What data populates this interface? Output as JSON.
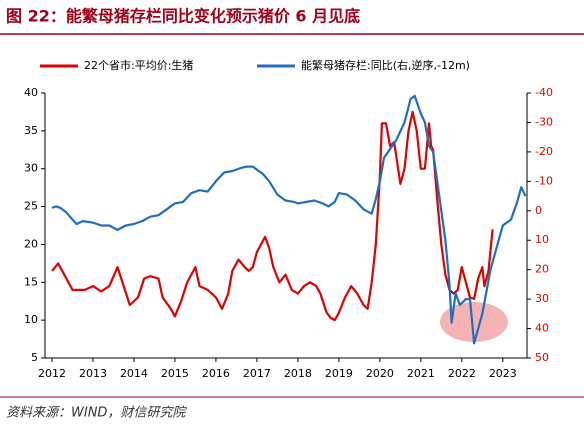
{
  "chart_data": {
    "type": "line",
    "title": "图 22：能繁母猪存栏同比变化预示猪价 6 月见底",
    "source": "资料来源：WIND，财信研究院",
    "xlim": [
      2011.83,
      2023.59
    ],
    "xticks": [
      2012,
      2013,
      2014,
      2015,
      2016,
      2017,
      2018,
      2019,
      2020,
      2021,
      2022,
      2023
    ],
    "ylim": [
      5,
      40
    ],
    "yticks": [
      5,
      10,
      15,
      20,
      25,
      30,
      35,
      40
    ],
    "y2lim": [
      -40,
      50
    ],
    "y2ticks": [
      -40,
      -30,
      -20,
      -10,
      0,
      10,
      20,
      30,
      40,
      50
    ],
    "y2_inverted": true,
    "y2tick_color": "#e00000",
    "legend": "top",
    "series": [
      {
        "name": "22个省市:平均价:生猪",
        "color": "#e00000",
        "x": [
          2012.0,
          2012.15,
          2012.3,
          2012.5,
          2012.8,
          2013.0,
          2013.2,
          2013.4,
          2013.6,
          2013.75,
          2013.9,
          2014.1,
          2014.25,
          2014.4,
          2014.6,
          2014.7,
          2014.9,
          2015.0,
          2015.15,
          2015.3,
          2015.5,
          2015.6,
          2015.8,
          2015.9,
          2016.0,
          2016.15,
          2016.3,
          2016.4,
          2016.55,
          2016.7,
          2016.8,
          2016.9,
          2017.0,
          2017.1,
          2017.2,
          2017.3,
          2017.4,
          2017.55,
          2017.7,
          2017.85,
          2018.0,
          2018.15,
          2018.3,
          2018.45,
          2018.55,
          2018.7,
          2018.8,
          2018.9,
          2019.0,
          2019.15,
          2019.3,
          2019.45,
          2019.6,
          2019.7,
          2019.8,
          2019.9,
          2020.0,
          2020.05,
          2020.15,
          2020.25,
          2020.35,
          2020.5,
          2020.6,
          2020.7,
          2020.8,
          2020.9,
          2021.0,
          2021.1,
          2021.2,
          2021.25,
          2021.3,
          2021.4,
          2021.5,
          2021.6,
          2021.7,
          2021.8,
          2021.9,
          2022.0,
          2022.1,
          2022.2,
          2022.3,
          2022.4,
          2022.5,
          2022.55,
          2022.65,
          2022.75
        ],
        "values": [
          16.5,
          17.5,
          16,
          14,
          14,
          14.5,
          13.8,
          14.5,
          17,
          14.5,
          12,
          13,
          15.5,
          15.8,
          15.5,
          13,
          11.5,
          10.5,
          12.5,
          15,
          17,
          14.5,
          14,
          13.5,
          13,
          11.5,
          13.5,
          16.5,
          18,
          17,
          16.5,
          17,
          19,
          20,
          21,
          19.5,
          17,
          15,
          16,
          14,
          13.5,
          14.5,
          15,
          14.5,
          13.5,
          11,
          10.3,
          10,
          11,
          13,
          14.5,
          13.5,
          12,
          11.5,
          15,
          20,
          29,
          36,
          36,
          33,
          33.5,
          28,
          30,
          35,
          37.5,
          35,
          30,
          30,
          36,
          33,
          32.5,
          26,
          20,
          16,
          14,
          13.5,
          14,
          17,
          15,
          13,
          12.8,
          15.5,
          17,
          14.5,
          16.5,
          22
        ]
      },
      {
        "name": "能繁母猪存栏:同比(右,逆序,-12m)",
        "color": "#1f6fbf",
        "axis": "y2",
        "x": [
          2012.0,
          2012.1,
          2012.2,
          2012.35,
          2012.5,
          2012.6,
          2012.75,
          2013.0,
          2013.2,
          2013.4,
          2013.6,
          2013.8,
          2014.0,
          2014.2,
          2014.4,
          2014.6,
          2014.8,
          2015.0,
          2015.2,
          2015.4,
          2015.6,
          2015.8,
          2016.0,
          2016.2,
          2016.4,
          2016.6,
          2016.75,
          2016.9,
          2017.0,
          2017.15,
          2017.3,
          2017.5,
          2017.7,
          2017.9,
          2018.0,
          2018.2,
          2018.4,
          2018.6,
          2018.75,
          2018.9,
          2019.0,
          2019.2,
          2019.4,
          2019.6,
          2019.8,
          2019.9,
          2020.0,
          2020.1,
          2020.2,
          2020.4,
          2020.6,
          2020.75,
          2020.85,
          2021.0,
          2021.1,
          2021.2,
          2021.3,
          2021.45,
          2021.6,
          2021.7,
          2021.75,
          2021.85,
          2021.95,
          2022.1,
          2022.2,
          2022.3,
          2022.4,
          2022.5,
          2022.7,
          2022.9,
          2023.0,
          2023.2,
          2023.35,
          2023.45,
          2023.55
        ],
        "values": [
          -1,
          -1.5,
          -1,
          0.5,
          3,
          4.5,
          3.5,
          4,
          5,
          5,
          6.5,
          5,
          4.5,
          3.5,
          2,
          1.5,
          -0.5,
          -2.5,
          -3,
          -6,
          -7,
          -6.5,
          -10,
          -13,
          -13.5,
          -14.5,
          -15,
          -15,
          -14,
          -12.5,
          -10,
          -5.5,
          -3.5,
          -3,
          -2.5,
          -3,
          -3.5,
          -2.5,
          -1.5,
          -3,
          -6,
          -5.5,
          -3.5,
          -0.5,
          1,
          -4,
          -10,
          -18,
          -20,
          -24,
          -30,
          -38,
          -39,
          -33,
          -30,
          -22,
          -20,
          -5,
          10,
          25,
          38,
          28,
          32,
          30,
          30,
          45,
          40,
          35,
          20,
          10,
          5,
          3,
          -3,
          -8,
          -5
        ]
      }
    ]
  }
}
